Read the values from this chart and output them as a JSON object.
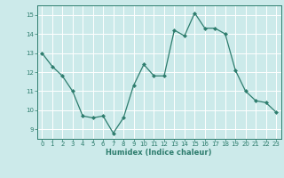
{
  "x": [
    0,
    1,
    2,
    3,
    4,
    5,
    6,
    7,
    8,
    9,
    10,
    11,
    12,
    13,
    14,
    15,
    16,
    17,
    18,
    19,
    20,
    21,
    22,
    23
  ],
  "y": [
    13.0,
    12.3,
    11.8,
    11.0,
    9.7,
    9.6,
    9.7,
    8.8,
    9.6,
    11.3,
    12.4,
    11.8,
    11.8,
    14.2,
    13.9,
    15.1,
    14.3,
    14.3,
    14.0,
    12.1,
    11.0,
    10.5,
    10.4,
    9.9
  ],
  "line_color": "#2e7d6e",
  "marker": "D",
  "marker_size": 2.0,
  "bg_color": "#cceaea",
  "grid_color": "#ffffff",
  "xlabel": "Humidex (Indice chaleur)",
  "ylim": [
    8.5,
    15.5
  ],
  "xlim": [
    -0.5,
    23.5
  ],
  "yticks": [
    9,
    10,
    11,
    12,
    13,
    14,
    15
  ],
  "xticks": [
    0,
    1,
    2,
    3,
    4,
    5,
    6,
    7,
    8,
    9,
    10,
    11,
    12,
    13,
    14,
    15,
    16,
    17,
    18,
    19,
    20,
    21,
    22,
    23
  ],
  "font_color": "#2e7d6e",
  "spine_color": "#2e7d6e",
  "tick_fontsize": 5.0,
  "xlabel_fontsize": 6.0,
  "linewidth": 0.9
}
